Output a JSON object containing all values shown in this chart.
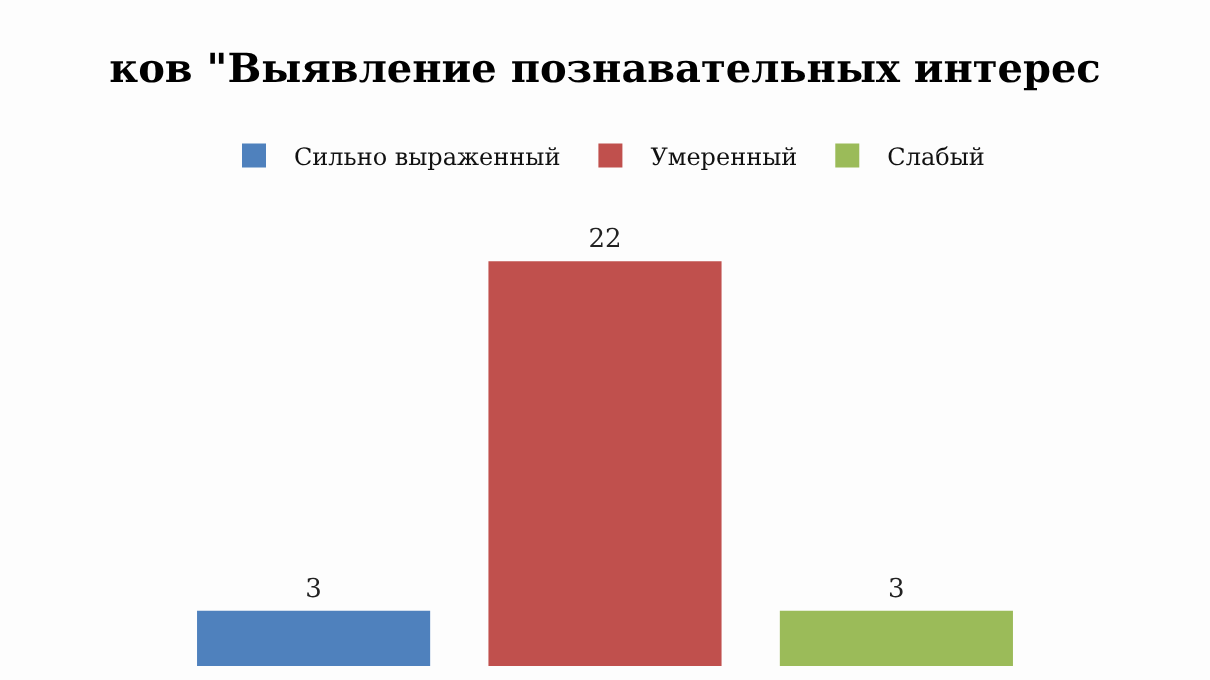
{
  "chart_data": {
    "type": "bar",
    "title": "ков \"Выявление познавательных интерес",
    "categories": [
      null
    ],
    "series": [
      {
        "name": "Сильно выраженный",
        "color": "#4f81bd",
        "values": [
          3
        ]
      },
      {
        "name": "Умеренный",
        "color": "#c0504d",
        "values": [
          22
        ]
      },
      {
        "name": "Слабый",
        "color": "#9bbb59",
        "values": [
          3
        ]
      }
    ],
    "data_labels": true,
    "legend": "top",
    "grid": false
  }
}
